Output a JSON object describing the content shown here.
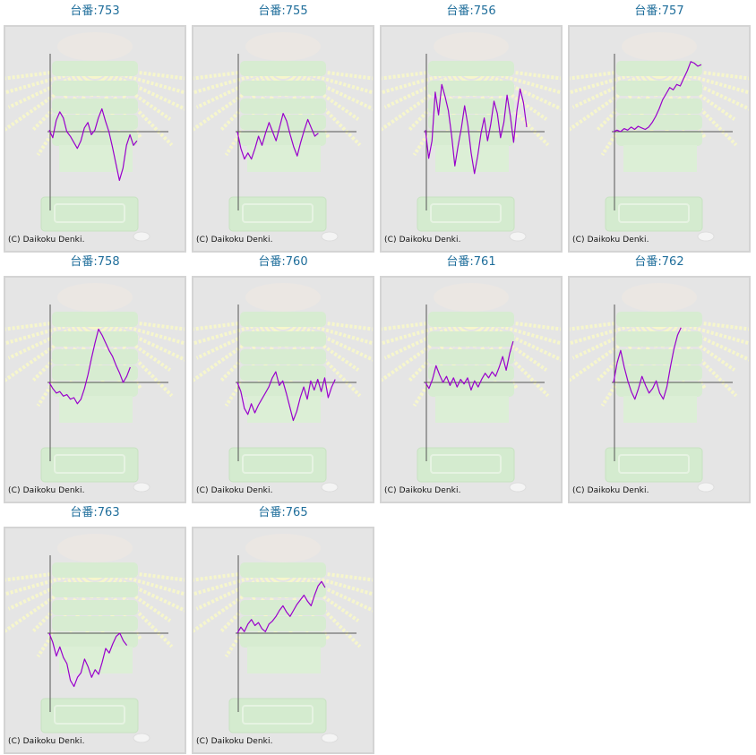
{
  "colors": {
    "title": "#1f6e9b",
    "line": "#9900cc",
    "axis": "#555555",
    "panel_background": "#e5e5e5",
    "panel_border": "#d4d4d4",
    "watermark_rays": "#f6f6cc",
    "watermark_machine": "#d7ecd1"
  },
  "copyright_text": "(C) Daikoku Denki.",
  "chart_data": [
    {
      "type": "line",
      "title": "台番:753",
      "x_range": [
        0,
        1
      ],
      "y_range": [
        -1,
        1
      ],
      "baseline": 0,
      "series": [
        {
          "values": [
            0.02,
            -0.08,
            0.15,
            0.26,
            0.18,
            0.0,
            -0.06,
            -0.14,
            -0.22,
            -0.12,
            0.05,
            0.12,
            -0.04,
            0.02,
            0.18,
            0.3,
            0.14,
            0.0,
            -0.2,
            -0.42,
            -0.64,
            -0.48,
            -0.18,
            -0.04,
            -0.18,
            -0.12
          ]
        }
      ]
    },
    {
      "type": "line",
      "title": "台番:755",
      "x_range": [
        0,
        1
      ],
      "y_range": [
        -1,
        1
      ],
      "baseline": 0,
      "series": [
        {
          "values": [
            0.0,
            -0.22,
            -0.36,
            -0.28,
            -0.36,
            -0.22,
            -0.06,
            -0.18,
            -0.02,
            0.12,
            0.0,
            -0.12,
            0.06,
            0.24,
            0.14,
            -0.04,
            -0.2,
            -0.32,
            -0.14,
            0.02,
            0.16,
            0.05,
            -0.06,
            -0.02
          ]
        }
      ]
    },
    {
      "type": "line",
      "title": "台番:756",
      "x_range": [
        0,
        1
      ],
      "y_range": [
        -1,
        1
      ],
      "baseline": 0,
      "series": [
        {
          "values": [
            0.02,
            -0.35,
            -0.12,
            0.52,
            0.22,
            0.62,
            0.46,
            0.28,
            -0.05,
            -0.45,
            -0.18,
            0.05,
            0.34,
            0.08,
            -0.28,
            -0.55,
            -0.32,
            -0.02,
            0.18,
            -0.12,
            0.1,
            0.4,
            0.24,
            -0.08,
            0.12,
            0.48,
            0.2,
            -0.14,
            0.28,
            0.56,
            0.38,
            0.06
          ]
        }
      ]
    },
    {
      "type": "line",
      "title": "台番:757",
      "x_range": [
        0,
        1
      ],
      "y_range": [
        -1,
        1
      ],
      "baseline": 0,
      "series": [
        {
          "values": [
            0.0,
            0.02,
            0.0,
            0.04,
            0.02,
            0.06,
            0.03,
            0.07,
            0.05,
            0.03,
            0.06,
            0.12,
            0.2,
            0.3,
            0.42,
            0.5,
            0.58,
            0.55,
            0.62,
            0.6,
            0.7,
            0.8,
            0.92,
            0.9,
            0.86,
            0.88
          ]
        }
      ]
    },
    {
      "type": "line",
      "title": "台番:758",
      "x_range": [
        0,
        1
      ],
      "y_range": [
        -1,
        1
      ],
      "baseline": 0,
      "series": [
        {
          "values": [
            0.0,
            -0.08,
            -0.14,
            -0.12,
            -0.18,
            -0.16,
            -0.22,
            -0.2,
            -0.28,
            -0.22,
            -0.08,
            0.1,
            0.32,
            0.52,
            0.7,
            0.62,
            0.52,
            0.42,
            0.34,
            0.22,
            0.12,
            0.0,
            0.08,
            0.2
          ]
        }
      ]
    },
    {
      "type": "line",
      "title": "台番:760",
      "x_range": [
        0,
        1
      ],
      "y_range": [
        -1,
        1
      ],
      "baseline": 0,
      "series": [
        {
          "values": [
            0.0,
            -0.12,
            -0.34,
            -0.42,
            -0.28,
            -0.4,
            -0.3,
            -0.22,
            -0.14,
            -0.06,
            0.06,
            0.14,
            -0.04,
            0.02,
            -0.14,
            -0.32,
            -0.5,
            -0.38,
            -0.2,
            -0.06,
            -0.22,
            0.02,
            -0.1,
            0.04,
            -0.12,
            0.06,
            -0.2,
            -0.06,
            0.04
          ]
        }
      ]
    },
    {
      "type": "line",
      "title": "台番:761",
      "x_range": [
        0,
        1
      ],
      "y_range": [
        -1,
        1
      ],
      "baseline": 0,
      "series": [
        {
          "values": [
            0.0,
            -0.08,
            0.04,
            0.22,
            0.1,
            0.0,
            0.08,
            -0.04,
            0.06,
            -0.06,
            0.04,
            -0.02,
            0.06,
            -0.1,
            0.02,
            -0.06,
            0.04,
            0.12,
            0.06,
            0.14,
            0.08,
            0.2,
            0.34,
            0.16,
            0.38,
            0.54
          ]
        }
      ]
    },
    {
      "type": "line",
      "title": "台番:762",
      "x_range": [
        0,
        1
      ],
      "y_range": [
        -1,
        1
      ],
      "baseline": 0,
      "series": [
        {
          "values": [
            0.0,
            0.26,
            0.42,
            0.2,
            0.02,
            -0.12,
            -0.22,
            -0.08,
            0.08,
            -0.04,
            -0.14,
            -0.08,
            0.02,
            -0.14,
            -0.22,
            -0.06,
            0.2,
            0.44,
            0.62,
            0.72
          ]
        }
      ]
    },
    {
      "type": "line",
      "title": "台番:763",
      "x_range": [
        0,
        1
      ],
      "y_range": [
        -1,
        1
      ],
      "baseline": 0,
      "series": [
        {
          "values": [
            0.0,
            -0.12,
            -0.3,
            -0.18,
            -0.32,
            -0.4,
            -0.62,
            -0.7,
            -0.58,
            -0.52,
            -0.34,
            -0.44,
            -0.58,
            -0.48,
            -0.54,
            -0.38,
            -0.2,
            -0.26,
            -0.14,
            -0.04,
            0.0,
            -0.1,
            -0.16
          ]
        }
      ]
    },
    {
      "type": "line",
      "title": "台番:765",
      "x_range": [
        0,
        1
      ],
      "y_range": [
        -1,
        1
      ],
      "baseline": 0,
      "series": [
        {
          "values": [
            0.0,
            0.08,
            0.02,
            0.12,
            0.18,
            0.1,
            0.14,
            0.06,
            0.02,
            0.12,
            0.16,
            0.22,
            0.3,
            0.36,
            0.28,
            0.22,
            0.3,
            0.38,
            0.44,
            0.5,
            0.42,
            0.36,
            0.5,
            0.62,
            0.68,
            0.6
          ]
        }
      ]
    }
  ]
}
